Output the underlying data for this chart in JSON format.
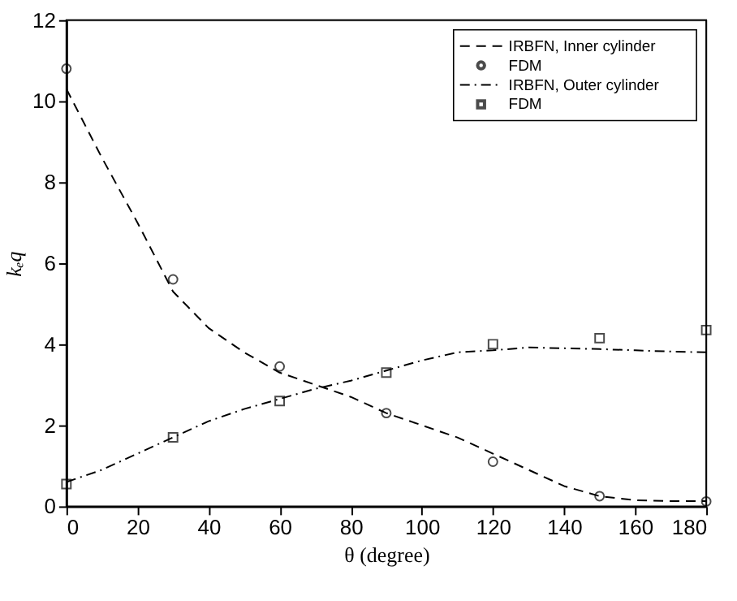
{
  "chart_data": {
    "type": "line",
    "xlabel": "θ (degree)",
    "ylabel": "kₑq",
    "xlim": [
      0,
      180
    ],
    "ylim": [
      0,
      12
    ],
    "xticks": [
      0,
      20,
      40,
      60,
      80,
      100,
      120,
      140,
      160,
      180
    ],
    "yticks": [
      0,
      2,
      4,
      6,
      8,
      10,
      12
    ],
    "grid": false,
    "legend": "top right",
    "series": [
      {
        "name": "IRBFN, Inner cylinder",
        "type": "line",
        "color": "#000000",
        "line_style": "dashed",
        "marker": "none",
        "x": [
          0,
          10,
          20,
          30,
          40,
          50,
          60,
          70,
          80,
          90,
          100,
          110,
          120,
          130,
          140,
          150,
          160,
          170,
          180
        ],
        "values": [
          10.3,
          8.6,
          7.0,
          5.3,
          4.4,
          3.8,
          3.3,
          3.0,
          2.7,
          2.3,
          2.0,
          1.7,
          1.3,
          0.9,
          0.5,
          0.25,
          0.15,
          0.13,
          0.13
        ]
      },
      {
        "name": "FDM",
        "type": "scatter",
        "color": "#000000",
        "marker": "circle",
        "x": [
          0,
          30,
          60,
          90,
          120,
          150,
          180
        ],
        "values": [
          10.8,
          5.6,
          3.45,
          2.3,
          1.1,
          0.25,
          0.12
        ]
      },
      {
        "name": "IRBFN, Outer cylinder",
        "type": "line",
        "color": "#000000",
        "line_style": "dashdot",
        "marker": "none",
        "x": [
          0,
          10,
          20,
          30,
          40,
          50,
          60,
          70,
          80,
          90,
          100,
          110,
          120,
          130,
          140,
          150,
          160,
          170,
          180
        ],
        "values": [
          0.6,
          0.9,
          1.3,
          1.7,
          2.1,
          2.4,
          2.65,
          2.9,
          3.1,
          3.35,
          3.6,
          3.8,
          3.85,
          3.92,
          3.9,
          3.88,
          3.85,
          3.82,
          3.8
        ]
      },
      {
        "name": "FDM",
        "type": "scatter",
        "color": "#000000",
        "marker": "square",
        "x": [
          0,
          30,
          60,
          90,
          120,
          150,
          180
        ],
        "values": [
          0.55,
          1.7,
          2.6,
          3.3,
          4.0,
          4.15,
          4.35
        ]
      }
    ]
  }
}
